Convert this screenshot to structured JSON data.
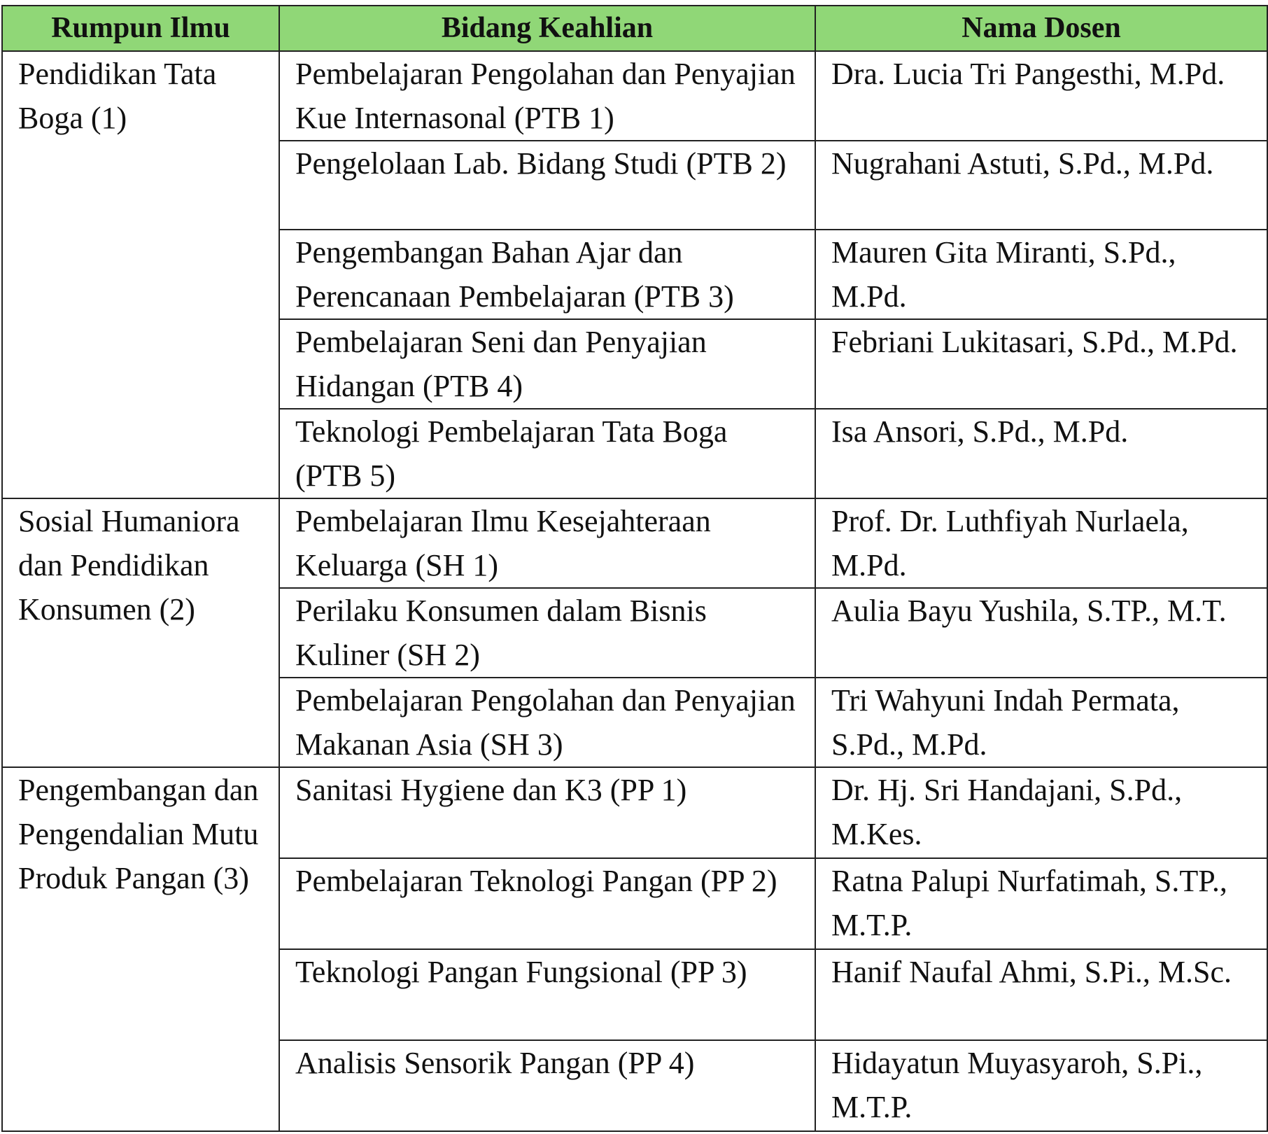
{
  "headers": [
    "Rumpun Ilmu",
    "Bidang Keahlian",
    "Nama Dosen"
  ],
  "groups": [
    {
      "rumpun": "Pendidikan Tata Boga (1)",
      "rows": [
        {
          "bidang": "Pembelajaran Pengolahan dan Penyajian Kue Internasonal (PTB 1)",
          "dosen": "Dra. Lucia Tri Pangesthi, M.Pd."
        },
        {
          "bidang": "Pengelolaan Lab. Bidang Studi (PTB 2)",
          "dosen": "Nugrahani Astuti, S.Pd., M.Pd."
        },
        {
          "bidang": "Pengembangan Bahan Ajar dan Perencanaan Pembelajaran (PTB 3)",
          "dosen": "Mauren Gita Miranti, S.Pd., M.Pd."
        },
        {
          "bidang": "Pembelajaran Seni dan Penyajian Hidangan (PTB 4)",
          "dosen": "Febriani Lukitasari, S.Pd., M.Pd."
        },
        {
          "bidang": "Teknologi Pembelajaran Tata Boga (PTB 5)",
          "dosen": "Isa Ansori, S.Pd., M.Pd."
        }
      ]
    },
    {
      "rumpun": "Sosial Humaniora dan Pendidikan Konsumen (2)",
      "rows": [
        {
          "bidang": "Pembelajaran Ilmu Kesejahteraan Keluarga (SH 1)",
          "dosen": "Prof. Dr. Luthfiyah Nurlaela, M.Pd."
        },
        {
          "bidang": "Perilaku Konsumen dalam Bisnis Kuliner (SH 2)",
          "dosen": "Aulia Bayu Yushila, S.TP., M.T."
        },
        {
          "bidang": "Pembelajaran Pengolahan dan Penyajian Makanan Asia (SH 3)",
          "dosen": "Tri Wahyuni Indah Permata, S.Pd., M.Pd."
        }
      ]
    },
    {
      "rumpun": "Pengembangan dan Pengendalian Mutu Produk Pangan (3)",
      "rows": [
        {
          "bidang": "Sanitasi Hygiene dan K3 (PP 1)",
          "dosen": "Dr. Hj. Sri Handajani, S.Pd., M.Kes."
        },
        {
          "bidang": "Pembelajaran Teknologi Pangan (PP 2)",
          "dosen": "Ratna Palupi Nurfatimah, S.TP., M.T.P."
        },
        {
          "bidang": "Teknologi Pangan Fungsional (PP 3)",
          "dosen": "Hanif Naufal Ahmi, S.Pi., M.Sc."
        },
        {
          "bidang": "Analisis Sensorik Pangan (PP 4)",
          "dosen": "Hidayatun Muyasyaroh, S.Pi., M.T.P."
        }
      ]
    }
  ],
  "colors": {
    "header_bg": "#90d777",
    "border": "#222222"
  }
}
